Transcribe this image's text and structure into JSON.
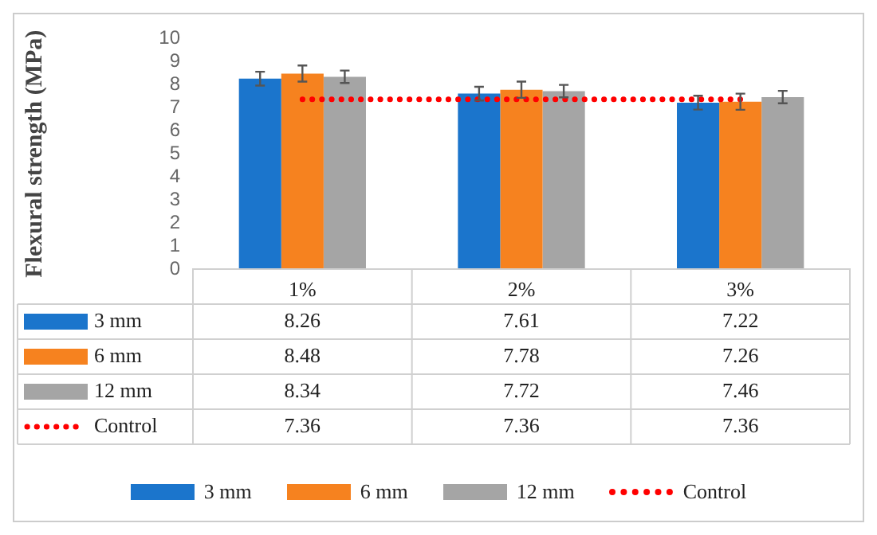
{
  "chart_data": {
    "type": "bar",
    "ylabel": "Flexural strength (MPa)",
    "categories": [
      "1%",
      "2%",
      "3%"
    ],
    "series": [
      {
        "name": "3 mm",
        "color": "#1b75cc",
        "values": [
          8.26,
          7.61,
          7.22
        ],
        "errors": [
          0.3,
          0.3,
          0.3
        ]
      },
      {
        "name": "6 mm",
        "color": "#f6821f",
        "values": [
          8.48,
          7.78,
          7.26
        ],
        "errors": [
          0.35,
          0.35,
          0.35
        ]
      },
      {
        "name": "12 mm",
        "color": "#a5a5a5",
        "values": [
          8.34,
          7.72,
          7.46
        ],
        "errors": [
          0.27,
          0.27,
          0.27
        ]
      },
      {
        "name": "Control",
        "type": "line",
        "color": "#ff0000",
        "values": [
          7.36,
          7.36,
          7.36
        ],
        "line_style": "dotted",
        "marker": "none"
      }
    ],
    "ylim": [
      0,
      10
    ],
    "yticks": [
      0,
      1,
      2,
      3,
      4,
      5,
      6,
      7,
      8,
      9,
      10
    ],
    "grid": false,
    "legend": "bottom",
    "data_labels": true
  }
}
